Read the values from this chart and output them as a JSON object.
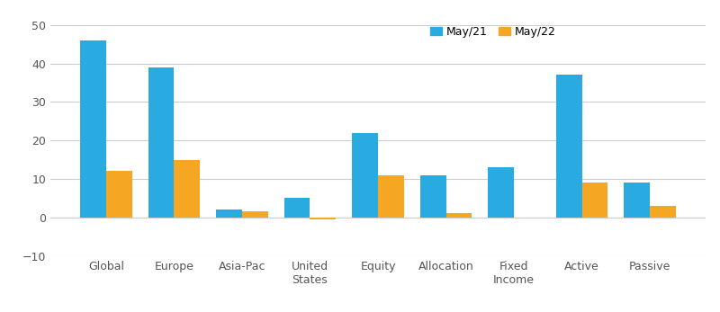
{
  "categories": [
    "Global",
    "Europe",
    "Asia-Pac",
    "United\nStates",
    "Equity",
    "Allocation",
    "Fixed\nIncome",
    "Active",
    "Passive"
  ],
  "may21": [
    46,
    39,
    2,
    5,
    22,
    11,
    13,
    37,
    9
  ],
  "may22": [
    12,
    15,
    1.5,
    -0.5,
    11,
    1,
    0,
    9,
    3
  ],
  "color_may21": "#29abe2",
  "color_may22": "#f5a623",
  "ylim": [
    -10,
    50
  ],
  "yticks": [
    -10,
    0,
    10,
    20,
    30,
    40,
    50
  ],
  "bar_width": 0.38,
  "legend_labels": [
    "May/21",
    "May/22"
  ],
  "background_color": "#ffffff",
  "grid_color": "#cccccc",
  "figsize": [
    8.0,
    3.47
  ],
  "dpi": 100
}
